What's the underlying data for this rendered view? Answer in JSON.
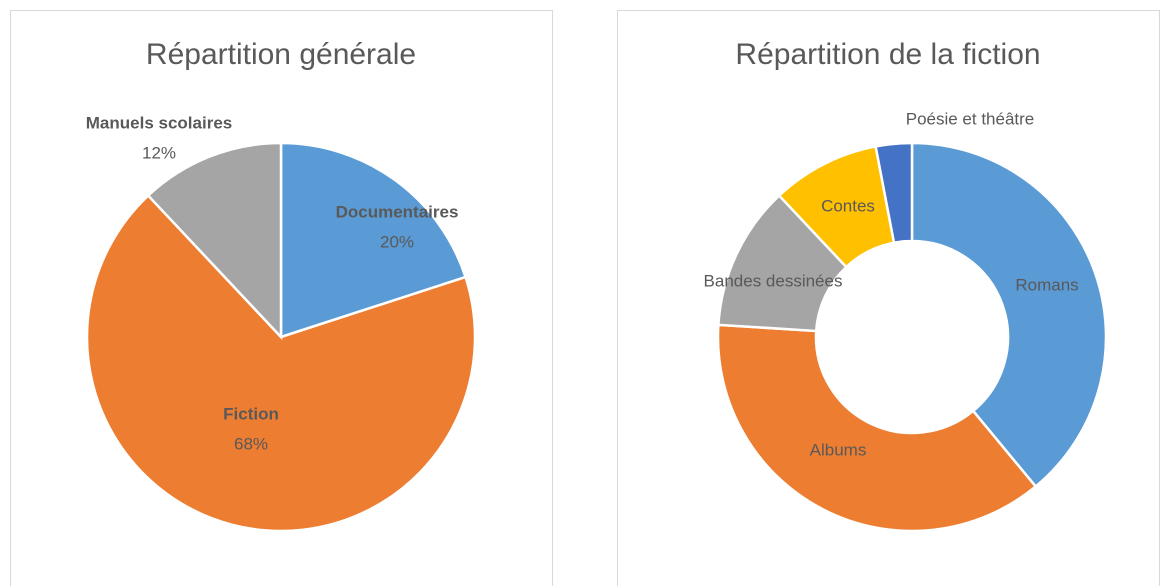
{
  "chart_data": [
    {
      "type": "pie",
      "title": "Répartition générale",
      "categories": [
        "Documentaires",
        "Fiction",
        "Manuels scolaires"
      ],
      "values": [
        20,
        68,
        12
      ],
      "value_labels": [
        "20%",
        "68%",
        "12%"
      ],
      "colors": [
        "#5b9bd5",
        "#ed7d31",
        "#a5a5a5"
      ]
    },
    {
      "type": "doughnut",
      "title": "Répartition de la fiction",
      "categories": [
        "Romans",
        "Albums",
        "Bandes dessinées",
        "Contes",
        "Poésie et théâtre"
      ],
      "values": [
        39,
        37,
        12,
        9,
        3
      ],
      "colors": [
        "#5b9bd5",
        "#ed7d31",
        "#a5a5a5",
        "#ffc000",
        "#4472c4"
      ]
    }
  ]
}
